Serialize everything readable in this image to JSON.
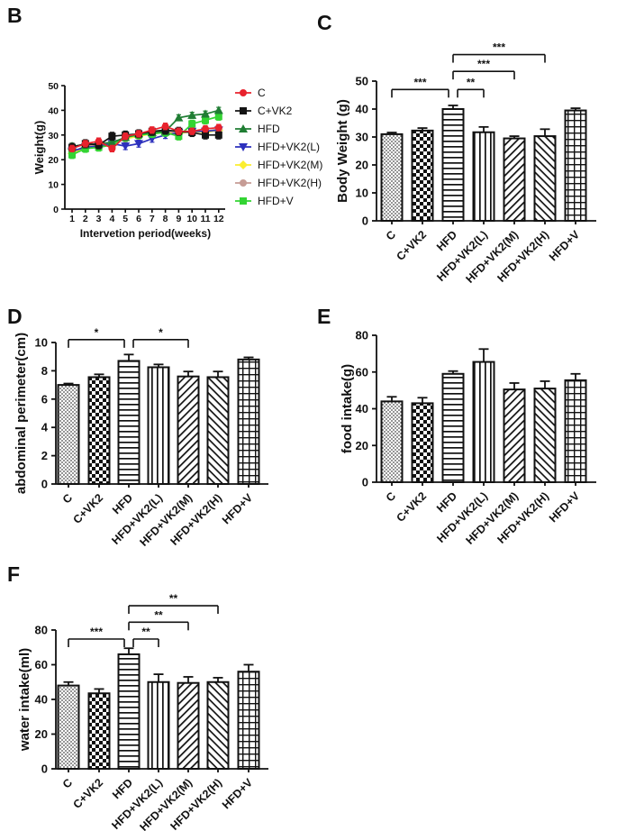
{
  "bar_patterns": [
    "dots",
    "checker",
    "horizontal-lines",
    "vertical-lines",
    "diagonal-up",
    "diagonal-down",
    "grid"
  ],
  "colors": {
    "axis": "#111111",
    "bar_outline": "#111111",
    "background": "#ffffff"
  },
  "chart_data": [
    {
      "panel": "B",
      "type": "line",
      "xlabel": "Intervetion period(weeks)",
      "ylabel": "Weight(g)",
      "x": [
        1,
        2,
        3,
        4,
        5,
        6,
        7,
        8,
        9,
        10,
        11,
        12
      ],
      "ylim": [
        0,
        50
      ],
      "yticks": [
        0,
        10,
        20,
        30,
        40,
        50
      ],
      "legend_position": "right",
      "series": [
        {
          "name": "C",
          "color": "#e8222d",
          "marker": "circle",
          "err": 1.3,
          "values": [
            24.5,
            26.5,
            27.5,
            24.5,
            29.5,
            30.5,
            32,
            33.5,
            31.5,
            31.5,
            32.5,
            33
          ]
        },
        {
          "name": "C+VK2",
          "color": "#141414",
          "marker": "square",
          "err": 1.6,
          "values": [
            25,
            26.5,
            26,
            29.5,
            30,
            30.5,
            31.5,
            32,
            31.5,
            31,
            30,
            30
          ]
        },
        {
          "name": "HFD",
          "color": "#1f7d33",
          "marker": "triangle-up",
          "err": 1.2,
          "values": [
            25.5,
            26,
            26.5,
            27,
            29,
            30.5,
            31,
            31.5,
            37,
            38,
            38.5,
            40
          ]
        },
        {
          "name": "HFD+VK2(L)",
          "color": "#2d31bd",
          "marker": "triangle-down",
          "err": 1.4,
          "values": [
            23.5,
            25,
            25.5,
            26.5,
            25.5,
            26.5,
            28.5,
            30,
            31,
            31.5,
            31.5,
            32
          ]
        },
        {
          "name": "HFD+VK2(M)",
          "color": "#fbee2f",
          "marker": "diamond",
          "err": 1.0,
          "values": [
            22.5,
            25,
            25.5,
            26.5,
            28.5,
            29.5,
            30.5,
            31,
            30.5,
            31.5,
            31,
            32
          ]
        },
        {
          "name": "HFD+VK2(H)",
          "color": "#c69c95",
          "marker": "circle",
          "err": 1.0,
          "values": [
            23,
            25.5,
            26,
            27,
            29,
            30,
            31,
            31.5,
            31,
            31.5,
            31.5,
            32.5
          ]
        },
        {
          "name": "HFD+V",
          "color": "#33d433",
          "marker": "square",
          "err": 1.5,
          "values": [
            22,
            24.5,
            25,
            26,
            29,
            30,
            30.5,
            31,
            29.5,
            34.5,
            36,
            37.5
          ]
        }
      ]
    },
    {
      "panel": "C",
      "type": "bar",
      "ylabel": "Body Weight (g)",
      "categories": [
        "C",
        "C+VK2",
        "HFD",
        "HFD+VK2(L)",
        "HFD+VK2(M)",
        "HFD+VK2(H)",
        "HFD+V"
      ],
      "values": [
        31,
        32.3,
        40,
        31.7,
        29.5,
        30.3,
        39.5
      ],
      "errors": [
        0.6,
        0.9,
        1.3,
        1.9,
        0.8,
        2.5,
        0.8
      ],
      "ylim": [
        0,
        50
      ],
      "yticks": [
        0,
        10,
        20,
        30,
        40,
        50
      ],
      "significance": [
        {
          "groups": [
            "C",
            "HFD"
          ],
          "from": 0,
          "to": 2,
          "label": "***",
          "level": 47,
          "offset_end": true
        },
        {
          "groups": [
            "HFD",
            "HFD+VK2(L)"
          ],
          "from": 2,
          "to": 3,
          "label": "**",
          "level": 47,
          "offset_start": true
        },
        {
          "groups": [
            "HFD",
            "HFD+VK2(M)"
          ],
          "from": 2,
          "to": 4,
          "label": "***",
          "level": 53.5
        },
        {
          "groups": [
            "HFD",
            "HFD+VK2(H)"
          ],
          "from": 2,
          "to": 5,
          "label": "***",
          "level": 59.5
        }
      ]
    },
    {
      "panel": "D",
      "type": "bar",
      "ylabel": "abdominal perimeter(cm)",
      "categories": [
        "C",
        "C+VK2",
        "HFD",
        "HFD+VK2(L)",
        "HFD+VK2(M)",
        "HFD+VK2(H)",
        "HFD+V"
      ],
      "values": [
        7.0,
        7.55,
        8.7,
        8.25,
        7.6,
        7.55,
        8.8
      ],
      "errors": [
        0.1,
        0.2,
        0.45,
        0.2,
        0.35,
        0.4,
        0.15
      ],
      "ylim": [
        0,
        10
      ],
      "yticks": [
        0,
        2,
        4,
        6,
        8,
        10
      ],
      "significance": [
        {
          "groups": [
            "C",
            "HFD"
          ],
          "from": 0,
          "to": 2,
          "label": "*",
          "level": 10.2,
          "offset_end": true
        },
        {
          "groups": [
            "HFD",
            "HFD+VK2(M)"
          ],
          "from": 2,
          "to": 4,
          "label": "*",
          "level": 10.2,
          "offset_start": true
        }
      ]
    },
    {
      "panel": "E",
      "type": "bar",
      "ylabel": "food intake(g)",
      "categories": [
        "C",
        "C+VK2",
        "HFD",
        "HFD+VK2(L)",
        "HFD+VK2(M)",
        "HFD+VK2(H)",
        "HFD+V"
      ],
      "values": [
        44,
        43,
        59,
        65.5,
        50.5,
        51,
        55.5
      ],
      "errors": [
        2.5,
        3,
        1.5,
        7,
        3.5,
        4,
        3.5
      ],
      "ylim": [
        0,
        80
      ],
      "yticks": [
        0,
        20,
        40,
        60,
        80
      ],
      "significance": []
    },
    {
      "panel": "F",
      "type": "bar",
      "ylabel": "water intake(ml)",
      "categories": [
        "C",
        "C+VK2",
        "HFD",
        "HFD+VK2(L)",
        "HFD+VK2(M)",
        "HFD+VK2(H)",
        "HFD+V"
      ],
      "values": [
        48,
        43.5,
        66,
        50,
        49.5,
        50,
        56
      ],
      "errors": [
        2,
        2.5,
        3.5,
        4.5,
        3.5,
        2.5,
        4
      ],
      "ylim": [
        0,
        80
      ],
      "yticks": [
        0,
        20,
        40,
        60,
        80
      ],
      "significance": [
        {
          "groups": [
            "C",
            "HFD"
          ],
          "from": 0,
          "to": 2,
          "label": "***",
          "level": 74.8,
          "offset_end": true
        },
        {
          "groups": [
            "HFD",
            "HFD+VK2(L)"
          ],
          "from": 2,
          "to": 3,
          "label": "**",
          "level": 74.8,
          "offset_start": true
        },
        {
          "groups": [
            "HFD",
            "HFD+VK2(M)"
          ],
          "from": 2,
          "to": 4,
          "label": "**",
          "level": 84.5
        },
        {
          "groups": [
            "HFD",
            "HFD+VK2(H)"
          ],
          "from": 2,
          "to": 5,
          "label": "**",
          "level": 94
        }
      ]
    }
  ]
}
